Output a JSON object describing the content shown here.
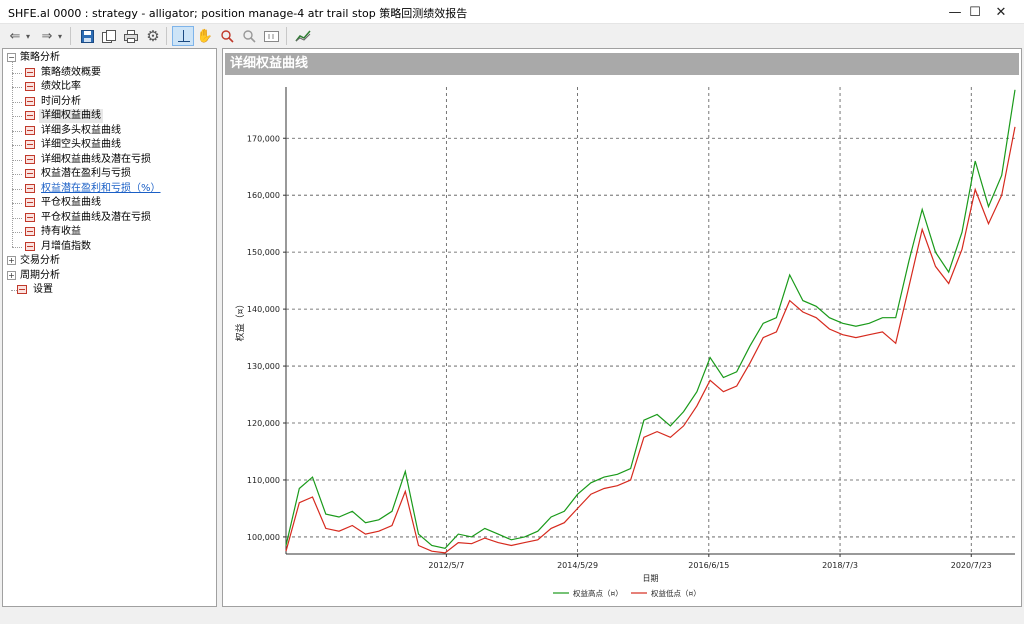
{
  "window": {
    "title": "SHFE.al 0000 : strategy - alligator; position manage-4 atr trail stop 策略回测绩效报告",
    "minimize_glyph": "—",
    "maximize_glyph": "☐",
    "close_glyph": "✕"
  },
  "toolbar": {
    "icons": [
      "back-arrow-icon",
      "dropdown-icon",
      "forward-arrow-icon",
      "dropdown-icon",
      "save-icon",
      "copy-icon",
      "print-icon",
      "settings-gear-icon",
      "crosshair-icon",
      "hand-pan-icon",
      "zoom-in-icon",
      "zoom-out-icon",
      "fit-icon",
      "chart-style-icon"
    ],
    "active": "crosshair-icon"
  },
  "tree": {
    "groups": [
      {
        "label": "策略分析",
        "expanded": true,
        "items": [
          {
            "label": "策略绩效概要",
            "icon": "table-icon"
          },
          {
            "label": "绩效比率",
            "icon": "table-icon"
          },
          {
            "label": "时间分析",
            "icon": "table-icon"
          },
          {
            "label": "详细权益曲线",
            "icon": "chart-icon",
            "selected": true
          },
          {
            "label": "详细多头权益曲线",
            "icon": "chart-icon"
          },
          {
            "label": "详细空头权益曲线",
            "icon": "chart-icon"
          },
          {
            "label": "详细权益曲线及潜在亏损",
            "icon": "chart-icon"
          },
          {
            "label": "权益潜在盈利与亏损",
            "icon": "chart-icon"
          },
          {
            "label": "权益潜在盈利和亏损（%）",
            "icon": "chart-icon",
            "link": true
          },
          {
            "label": "平仓权益曲线",
            "icon": "chart-icon"
          },
          {
            "label": "平仓权益曲线及潜在亏损",
            "icon": "chart-icon"
          },
          {
            "label": "持有收益",
            "icon": "chart-icon"
          },
          {
            "label": "月增值指数",
            "icon": "chart-icon"
          }
        ]
      },
      {
        "label": "交易分析",
        "expanded": false,
        "items": []
      },
      {
        "label": "周期分析",
        "expanded": false,
        "items": []
      },
      {
        "label": "设置",
        "leaf": true,
        "items": []
      }
    ],
    "expand_glyph": "+",
    "collapse_glyph": "−"
  },
  "panel": {
    "header": "详细权益曲线"
  },
  "chart_data": {
    "type": "line",
    "ylabel": "权益（¤）",
    "xlabel": "日期",
    "ylim": [
      97000,
      179000
    ],
    "y_ticks": [
      100000,
      110000,
      120000,
      130000,
      140000,
      150000,
      160000,
      170000
    ],
    "y_tick_labels": [
      "100,000",
      "110,000",
      "120,000",
      "130,000",
      "140,000",
      "150,000",
      "160,000",
      "170,000"
    ],
    "x_tick_labels": [
      "2012/5/7",
      "2014/5/29",
      "2016/6/15",
      "2018/7/3",
      "2020/7/23"
    ],
    "x_tick_positions": [
      0.22,
      0.4,
      0.58,
      0.76,
      0.94
    ],
    "grid": true,
    "legend_position": "bottom-center",
    "colors": {
      "high": "#1a9a1a",
      "low": "#d62a1e",
      "grid": "#555555"
    },
    "series": [
      {
        "name": "权益高点（¤）",
        "x": [
          0,
          0.02,
          0.04,
          0.06,
          0.08,
          0.1,
          0.12,
          0.14,
          0.16,
          0.18,
          0.2,
          0.22,
          0.24,
          0.26,
          0.28,
          0.3,
          0.32,
          0.34,
          0.36,
          0.38,
          0.4,
          0.42,
          0.44,
          0.46,
          0.48,
          0.5,
          0.52,
          0.54,
          0.56,
          0.58,
          0.6,
          0.62,
          0.64,
          0.66,
          0.68,
          0.7,
          0.72,
          0.74,
          0.76,
          0.78,
          0.8,
          0.82,
          0.84,
          0.86,
          0.88,
          0.9,
          0.92,
          0.94,
          0.96,
          0.98,
          1.0
        ],
        "values": [
          98500,
          108500,
          110500,
          104000,
          103500,
          104500,
          102500,
          103000,
          104500,
          111500,
          100500,
          98500,
          98000,
          100500,
          100000,
          101500,
          100500,
          99500,
          100000,
          101000,
          103500,
          104500,
          107500,
          109500,
          110500,
          111000,
          112000,
          120500,
          121500,
          119500,
          122000,
          125500,
          131500,
          128000,
          129000,
          133500,
          137500,
          138500,
          146000,
          141500,
          140500,
          138500,
          137500,
          137000,
          137500,
          138500,
          138500,
          148500,
          157500,
          150000,
          146500
        ]
      },
      {
        "name": "权益低点（¤）",
        "x": [
          0,
          0.02,
          0.04,
          0.06,
          0.08,
          0.1,
          0.12,
          0.14,
          0.16,
          0.18,
          0.2,
          0.22,
          0.24,
          0.26,
          0.28,
          0.3,
          0.32,
          0.34,
          0.36,
          0.38,
          0.4,
          0.42,
          0.44,
          0.46,
          0.48,
          0.5,
          0.52,
          0.54,
          0.56,
          0.58,
          0.6,
          0.62,
          0.64,
          0.66,
          0.68,
          0.7,
          0.72,
          0.74,
          0.76,
          0.78,
          0.8,
          0.82,
          0.84,
          0.86,
          0.88,
          0.9,
          0.92,
          0.94,
          0.96,
          0.98,
          1.0
        ],
        "values": [
          97500,
          106000,
          107000,
          101500,
          101000,
          102000,
          100500,
          101000,
          102000,
          108000,
          98500,
          97500,
          97200,
          99000,
          98800,
          99800,
          99000,
          98500,
          99000,
          99500,
          101500,
          102500,
          105000,
          107500,
          108500,
          109000,
          110000,
          117500,
          118500,
          117500,
          119500,
          123000,
          127500,
          125500,
          126500,
          130500,
          135000,
          136000,
          141500,
          139500,
          138500,
          136500,
          135500,
          135000,
          135500,
          136000,
          134000,
          144000,
          154000,
          147500,
          144500
        ]
      }
    ],
    "tail": {
      "x": [
        1.0,
        1.02,
        1.04,
        1.06,
        1.08,
        1.1
      ],
      "high": [
        146500,
        153500,
        166000,
        158000,
        163500,
        178500
      ],
      "low": [
        144500,
        150500,
        161000,
        155000,
        160000,
        172000
      ]
    }
  }
}
